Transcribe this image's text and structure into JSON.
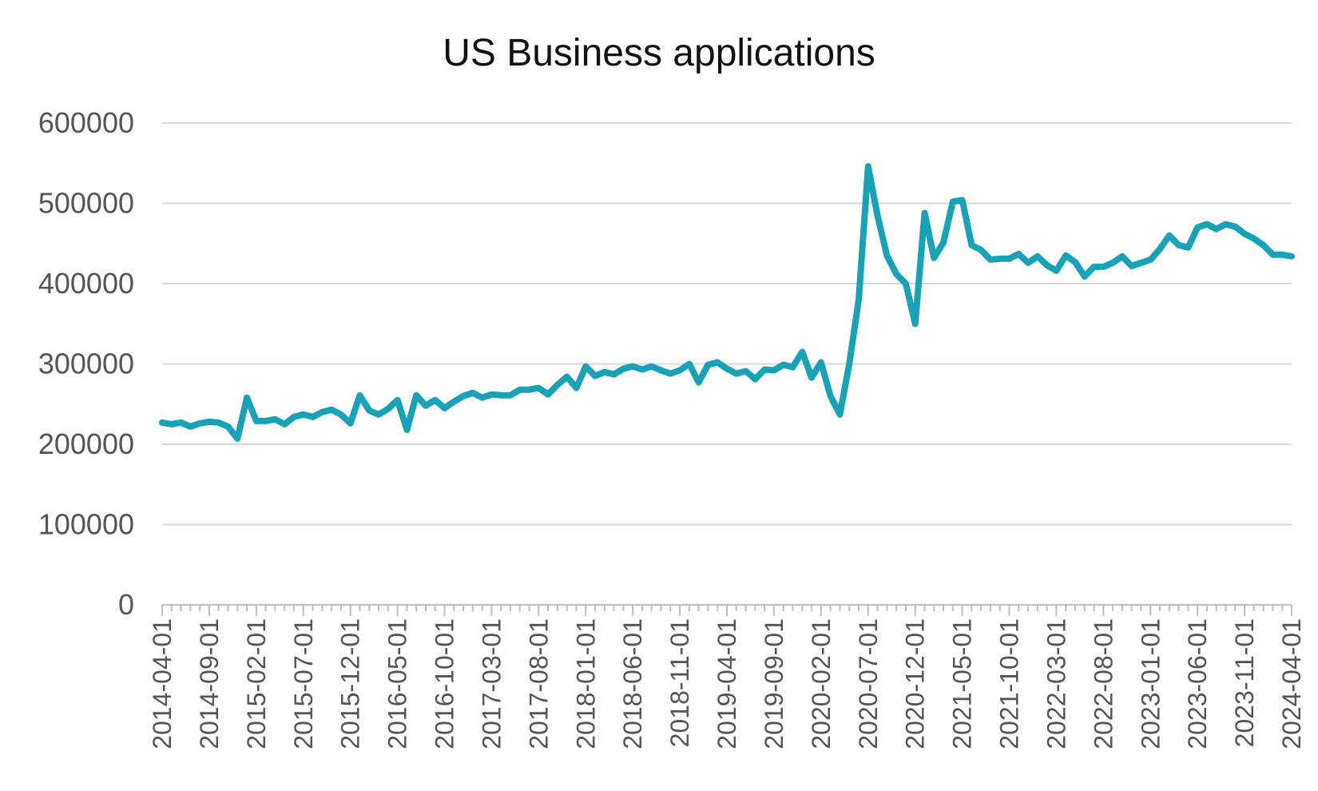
{
  "chart_data": {
    "type": "line",
    "title": "US Business applications",
    "xlabel": "",
    "ylabel": "",
    "ylim": [
      0,
      600000
    ],
    "yticks": [
      "0",
      "100000",
      "200000",
      "300000",
      "400000",
      "500000",
      "600000"
    ],
    "xticks": [
      "2014-04-01",
      "2014-09-01",
      "2015-02-01",
      "2015-07-01",
      "2015-12-01",
      "2016-05-01",
      "2016-10-01",
      "2017-03-01",
      "2017-08-01",
      "2018-01-01",
      "2018-06-01",
      "2018-11-01",
      "2019-04-01",
      "2019-09-01",
      "2020-02-01",
      "2020-07-01",
      "2020-12-01",
      "2021-05-01",
      "2021-10-01",
      "2022-03-01",
      "2022-08-01",
      "2023-01-01",
      "2023-06-01",
      "2023-11-01",
      "2024-04-01"
    ],
    "grid": true,
    "legend": "none",
    "colors": {
      "line": "#17a2b8",
      "grid": "#d9d9d9",
      "text": "#555555"
    },
    "series": [
      {
        "start": "2014-04",
        "values": [
          227000,
          225000,
          227000,
          222000,
          226000,
          228000,
          227000,
          222000,
          207000,
          258000,
          229000,
          229000,
          231000,
          225000,
          234000,
          237000,
          234000,
          240000,
          243000,
          237000,
          226000,
          261000,
          242000,
          237000,
          244000,
          255000,
          218000,
          261000,
          248000,
          255000,
          245000,
          253000,
          260000,
          264000,
          258000,
          262000,
          261000,
          261000,
          268000,
          268000,
          270000,
          262000,
          274000,
          284000,
          270000,
          297000,
          285000,
          290000,
          287000,
          294000,
          297000,
          293000,
          297000,
          292000,
          288000,
          292000,
          300000,
          277000,
          299000,
          302000,
          294000,
          288000,
          291000,
          281000,
          293000,
          292000,
          299000,
          296000,
          315000,
          283000,
          302000,
          260000,
          237000,
          300000,
          380000,
          546000,
          485000,
          435000,
          412000,
          400000,
          350000,
          488000,
          432000,
          451000,
          502000,
          504000,
          448000,
          442000,
          430000,
          431000,
          431000,
          437000,
          426000,
          434000,
          423000,
          416000,
          435000,
          427000,
          409000,
          421000,
          421000,
          426000,
          434000,
          422000,
          426000,
          430000,
          443000,
          460000,
          448000,
          445000,
          470000,
          474000,
          468000,
          474000,
          471000,
          462000,
          456000,
          448000,
          436000,
          436000,
          434000
        ]
      }
    ]
  }
}
